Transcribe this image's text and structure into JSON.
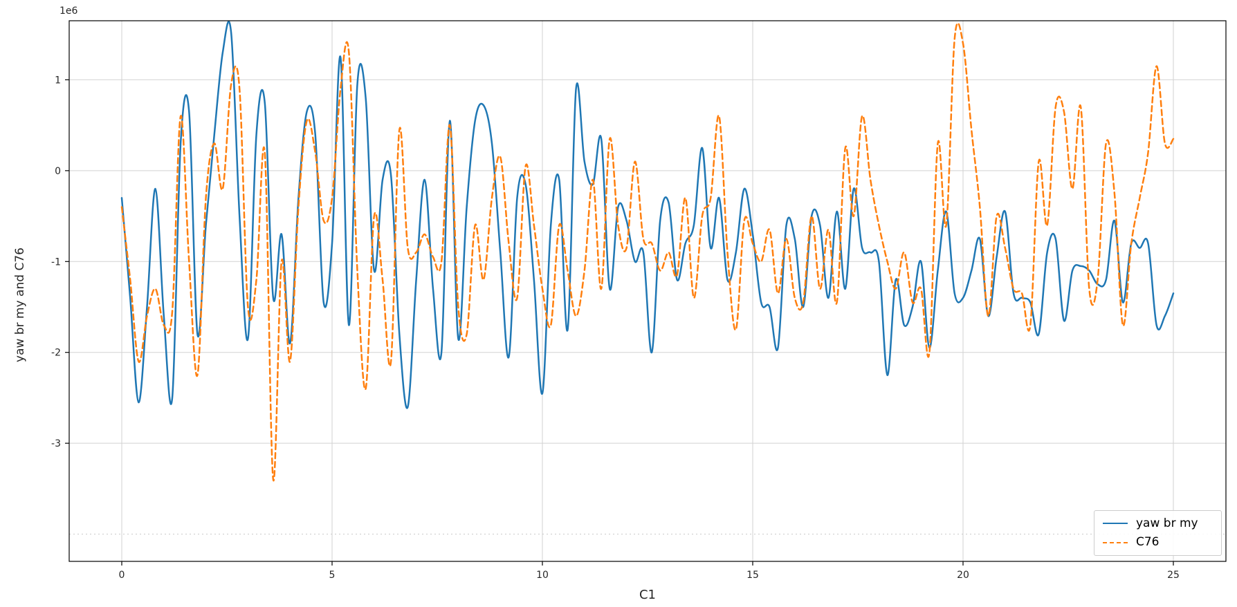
{
  "chart_data": {
    "type": "line",
    "title": "",
    "xlabel": "C1",
    "ylabel": "yaw br my and C76",
    "offset_text": "1e6",
    "unit_multiplier": 1000000,
    "xlim": [
      -1.25,
      26.25
    ],
    "ylim": [
      -4.3,
      1.65
    ],
    "xticks": [
      0,
      5,
      10,
      15,
      20,
      25
    ],
    "yticks": [
      -3,
      -2,
      -1,
      0,
      1
    ],
    "extra_dotted_gridline_y": -4,
    "grid": true,
    "legend_position": "lower right",
    "x_start": 0,
    "x_step": 0.2,
    "series": [
      {
        "name": "yaw br my",
        "color": "#1f77b4",
        "style": "solid",
        "values": [
          -0.3,
          -1.4,
          -2.55,
          -1.5,
          -0.2,
          -1.6,
          -2.5,
          0.3,
          0.65,
          -1.8,
          -0.6,
          0.4,
          1.3,
          1.52,
          -0.5,
          -1.85,
          0.4,
          0.75,
          -1.4,
          -0.7,
          -1.9,
          -0.3,
          0.65,
          0.4,
          -1.45,
          -0.8,
          1.25,
          -1.7,
          0.95,
          0.8,
          -1.1,
          -0.1,
          -0.05,
          -1.8,
          -2.6,
          -1.2,
          -0.1,
          -1.3,
          -2.0,
          0.55,
          -1.85,
          -0.4,
          0.55,
          0.72,
          0.3,
          -0.9,
          -2.05,
          -0.3,
          -0.15,
          -1.2,
          -2.45,
          -0.6,
          -0.1,
          -1.75,
          0.9,
          0.1,
          -0.15,
          0.35,
          -1.3,
          -0.4,
          -0.55,
          -1.0,
          -0.9,
          -2.0,
          -0.55,
          -0.35,
          -1.2,
          -0.8,
          -0.6,
          0.25,
          -0.85,
          -0.3,
          -1.2,
          -0.9,
          -0.2,
          -0.7,
          -1.45,
          -1.5,
          -1.95,
          -0.6,
          -0.75,
          -1.5,
          -0.5,
          -0.6,
          -1.4,
          -0.45,
          -1.3,
          -0.2,
          -0.85,
          -0.9,
          -1.0,
          -2.25,
          -1.2,
          -1.7,
          -1.5,
          -1.0,
          -1.95,
          -1.1,
          -0.45,
          -1.35,
          -1.4,
          -1.1,
          -0.75,
          -1.6,
          -0.95,
          -0.45,
          -1.35,
          -1.4,
          -1.45,
          -1.8,
          -0.9,
          -0.75,
          -1.65,
          -1.1,
          -1.05,
          -1.1,
          -1.25,
          -1.2,
          -0.55,
          -1.45,
          -0.8,
          -0.85,
          -0.8,
          -1.7,
          -1.6,
          -1.35
        ]
      },
      {
        "name": "C76",
        "color": "#ff7f0e",
        "style": "dashed",
        "values": [
          -0.4,
          -1.2,
          -2.1,
          -1.6,
          -1.3,
          -1.7,
          -1.55,
          0.6,
          -1.0,
          -2.25,
          -0.3,
          0.3,
          -0.2,
          0.95,
          0.9,
          -1.5,
          -1.2,
          0.2,
          -3.4,
          -1.0,
          -2.1,
          -0.4,
          0.55,
          0.2,
          -0.55,
          -0.3,
          0.9,
          1.3,
          -1.1,
          -2.4,
          -0.5,
          -1.2,
          -2.1,
          0.45,
          -0.85,
          -0.9,
          -0.7,
          -0.95,
          -1.0,
          0.5,
          -1.5,
          -1.8,
          -0.6,
          -1.2,
          -0.3,
          0.15,
          -0.8,
          -1.4,
          0.05,
          -0.6,
          -1.3,
          -1.7,
          -0.6,
          -1.1,
          -1.6,
          -1.1,
          -0.1,
          -1.3,
          0.35,
          -0.6,
          -0.85,
          0.1,
          -0.75,
          -0.8,
          -1.1,
          -0.9,
          -1.15,
          -0.3,
          -1.4,
          -0.5,
          -0.3,
          0.6,
          -0.9,
          -1.75,
          -0.55,
          -0.8,
          -1.0,
          -0.65,
          -1.35,
          -0.75,
          -1.4,
          -1.45,
          -0.5,
          -1.3,
          -0.65,
          -1.45,
          0.25,
          -0.5,
          0.6,
          -0.1,
          -0.6,
          -1.0,
          -1.3,
          -0.9,
          -1.45,
          -1.3,
          -2.0,
          0.3,
          -0.6,
          1.45,
          1.4,
          0.45,
          -0.4,
          -1.6,
          -0.5,
          -0.85,
          -1.3,
          -1.35,
          -1.7,
          0.1,
          -0.6,
          0.7,
          0.65,
          -0.2,
          0.7,
          -1.3,
          -1.2,
          0.3,
          -0.25,
          -1.7,
          -0.8,
          -0.3,
          0.2,
          1.15,
          0.3,
          0.35
        ]
      }
    ]
  },
  "legend": {
    "items": [
      {
        "label": "yaw br my"
      },
      {
        "label": "C76"
      }
    ]
  }
}
